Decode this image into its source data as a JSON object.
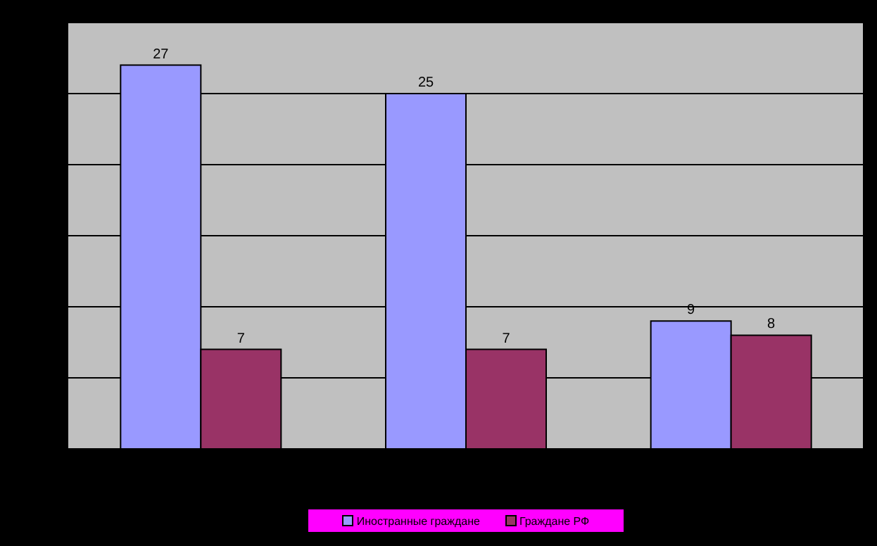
{
  "chart_data": {
    "type": "bar",
    "categories": [
      null,
      null,
      null
    ],
    "series": [
      {
        "name": "Иностранные граждане",
        "color": "#9999ff",
        "values": [
          27,
          25,
          9
        ]
      },
      {
        "name": "Граждане РФ",
        "color": "#993366",
        "values": [
          7,
          7,
          8
        ]
      }
    ],
    "ylim": [
      0,
      30
    ],
    "grid": "y",
    "data_labels": true,
    "legend": "bottom",
    "tick_labels": false
  }
}
